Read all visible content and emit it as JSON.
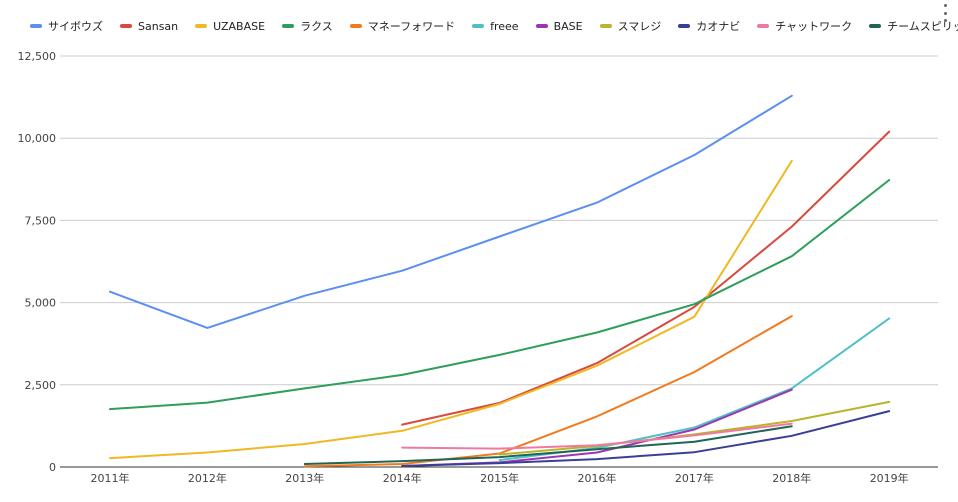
{
  "menu_icon": "more-vert-icon",
  "chart_data": {
    "type": "line",
    "title": "",
    "xlabel": "",
    "ylabel": "",
    "legend_position": "top",
    "grid": true,
    "categories": [
      "2011年",
      "2012年",
      "2013年",
      "2014年",
      "2015年",
      "2016年",
      "2017年",
      "2018年",
      "2019年"
    ],
    "ylim": [
      0,
      12500
    ],
    "yticks": [
      0,
      2500,
      5000,
      7500,
      10000,
      12500
    ],
    "ytick_labels": [
      "0",
      "2,500",
      "5,000",
      "7,500",
      "10,000",
      "12,500"
    ],
    "series": [
      {
        "name": "サイボウズ",
        "color": "#5b8ff0",
        "values": [
          5330,
          4230,
          5210,
          5970,
          7010,
          8040,
          9490,
          11290,
          null
        ]
      },
      {
        "name": "Sansan",
        "color": "#d94a3e",
        "values": [
          null,
          null,
          null,
          1290,
          1950,
          3160,
          4870,
          7310,
          10200
        ]
      },
      {
        "name": "UZABASE",
        "color": "#f0b823",
        "values": [
          270,
          440,
          700,
          1100,
          1920,
          3080,
          4570,
          9310,
          null
        ]
      },
      {
        "name": "ラクス",
        "color": "#2e9e5a",
        "values": [
          1760,
          1960,
          2390,
          2800,
          3410,
          4090,
          4950,
          6410,
          8730
        ]
      },
      {
        "name": "マネーフォワード",
        "color": "#f27a1e",
        "values": [
          null,
          null,
          20,
          90,
          410,
          1540,
          2890,
          4590,
          null
        ]
      },
      {
        "name": "freee",
        "color": "#4fc0c6",
        "values": [
          null,
          null,
          null,
          null,
          210,
          580,
          1200,
          2390,
          4520
        ]
      },
      {
        "name": "BASE",
        "color": "#9c35b5",
        "values": [
          null,
          null,
          null,
          30,
          140,
          440,
          1140,
          2350,
          null
        ]
      },
      {
        "name": "スマレジ",
        "color": "#b9b42b",
        "values": [
          null,
          null,
          null,
          null,
          380,
          640,
          990,
          1400,
          1980
        ]
      },
      {
        "name": "カオナビ",
        "color": "#3a3f96",
        "values": [
          null,
          null,
          null,
          30,
          120,
          240,
          450,
          950,
          1700
        ]
      },
      {
        "name": "チャットワーク",
        "color": "#ef7aa0",
        "values": [
          null,
          null,
          null,
          590,
          560,
          660,
          960,
          1320,
          null
        ]
      },
      {
        "name": "チームスピリット",
        "color": "#1f6654",
        "values": [
          null,
          null,
          90,
          180,
          300,
          540,
          770,
          1240,
          null
        ]
      }
    ]
  }
}
